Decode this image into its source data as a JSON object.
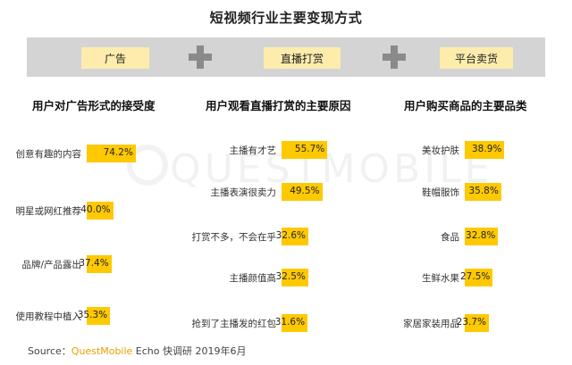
{
  "title": "短视频行业主要变现方式",
  "banner": {
    "items": [
      "广告",
      "直播打赏",
      "平台卖货"
    ]
  },
  "watermark": "QUESTMOBILE",
  "colors": {
    "bar": "#fec900",
    "pill": "#fdecac",
    "banner": "#d4d4d4",
    "brand": "#e8a000"
  },
  "chart_data": [
    {
      "type": "bar",
      "title": "用户对广告形式的接受度",
      "categories": [
        "创意有趣的内容",
        "明星或网红推荐",
        "品牌/产品露出",
        "使用教程中植入"
      ],
      "values": [
        74.2,
        40.0,
        37.4,
        35.3
      ],
      "value_labels": [
        "74.2%",
        "40.0%",
        "37.4%",
        "35.3%"
      ]
    },
    {
      "type": "bar",
      "title": "用户观看直播打赏的主要原因",
      "categories": [
        "主播有才艺",
        "主播表演很卖力",
        "打赏不多，不会在乎",
        "主播颜值高",
        "抢到了主播发的红包"
      ],
      "values": [
        55.7,
        49.5,
        32.6,
        32.5,
        31.6
      ],
      "value_labels": [
        "55.7%",
        "49.5%",
        "32.6%",
        "32.5%",
        "31.6%"
      ]
    },
    {
      "type": "bar",
      "title": "用户购买商品的主要品类",
      "categories": [
        "美妆护肤",
        "鞋帽服饰",
        "食品",
        "生鲜水果",
        "家居家装用品"
      ],
      "values": [
        38.9,
        35.8,
        32.8,
        27.5,
        23.7
      ],
      "value_labels": [
        "38.9%",
        "35.8%",
        "32.8%",
        "27.5%",
        "23.7%"
      ]
    }
  ],
  "footer": {
    "label": "Source：",
    "brand": "QuestMobile",
    "text": " Echo 快调研 2019年6月"
  }
}
